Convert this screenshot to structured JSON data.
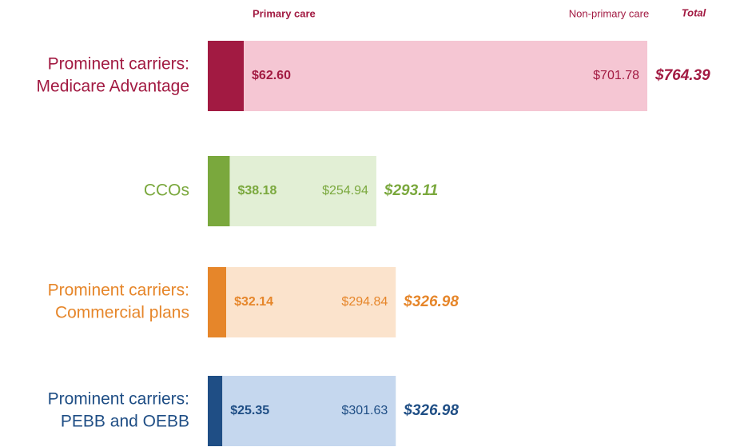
{
  "chart_data": {
    "type": "stacked-bar-horizontal",
    "categories": [
      [
        "Prominent carriers:",
        "Medicare Advantage"
      ],
      [
        "CCOs"
      ],
      [
        "Prominent carriers:",
        "Commercial plans"
      ],
      [
        "Prominent carriers:",
        "PEBB and OEBB"
      ]
    ],
    "category_colors": [
      "#a21a42",
      "#7aa83d",
      "#e6862a",
      "#1f4e85"
    ],
    "series": [
      {
        "name": "Primary care",
        "color": "#a21a42",
        "colors": [
          "#a21a42",
          "#7aa83d",
          "#e6862a",
          "#1f4e85"
        ],
        "values": [
          62.6,
          38.18,
          32.14,
          25.35
        ],
        "value_labels": [
          "$62.60",
          "$38.18",
          "$32.14",
          "$25.35"
        ]
      },
      {
        "name": "Non-primary care",
        "color": "#a21a42",
        "colors": [
          "#f5c6d3",
          "#e2efd5",
          "#fbe3cc",
          "#c5d7ee"
        ],
        "values": [
          701.78,
          254.94,
          294.84,
          301.63
        ],
        "value_labels": [
          "$701.78",
          "$254.94",
          "$294.84",
          "$301.63"
        ]
      }
    ],
    "total_header": "Total",
    "totals": [
      764.39,
      293.11,
      326.98,
      326.98
    ],
    "total_labels": [
      "$764.39",
      "$293.11",
      "$326.98",
      "$326.98"
    ]
  }
}
